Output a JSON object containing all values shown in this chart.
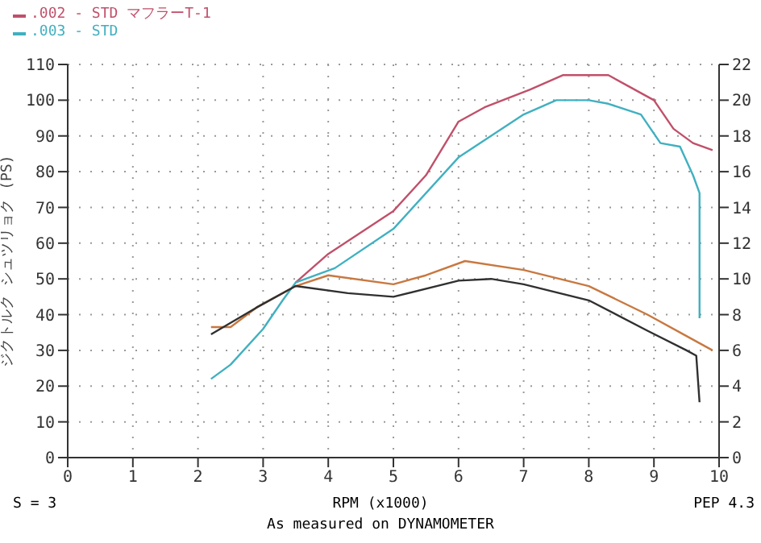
{
  "chart_data": {
    "type": "line",
    "xlabel": "RPM (x1000)",
    "ylabel": "ジクトルク シュツリョク (PS)",
    "annotations": [
      "S = 3",
      "PEP 4.3",
      "As measured on DYNAMOMETER"
    ],
    "xlim": [
      0,
      10
    ],
    "xticks": [
      0,
      1,
      2,
      3,
      4,
      5,
      6,
      7,
      8,
      9,
      10
    ],
    "ylim": [
      0,
      110
    ],
    "yticks": [
      0,
      10,
      20,
      30,
      40,
      50,
      60,
      70,
      80,
      90,
      100,
      110
    ],
    "y2lim": [
      0,
      22
    ],
    "y2ticks": [
      0,
      2,
      4,
      6,
      8,
      10,
      12,
      14,
      16,
      18,
      20,
      22
    ],
    "grid": true,
    "legend": "top left",
    "marker": "none",
    "line_style": "solid",
    "series": [
      {
        "name": ".002 - STD マフラーT-1",
        "color": "#c0506a",
        "x": [
          3.5,
          4.0,
          5.0,
          5.5,
          6.0,
          6.4,
          7.1,
          7.6,
          8.3,
          8.6,
          9.0,
          9.3,
          9.6,
          9.9
        ],
        "values": [
          49,
          57,
          69,
          79,
          94,
          98,
          103,
          107,
          107,
          104,
          100,
          92,
          88,
          86
        ]
      },
      {
        "name": ".003 - STD",
        "color": "#40b0c0",
        "x": [
          2.2,
          2.5,
          3.0,
          3.3,
          3.5,
          4.1,
          5.0,
          6.0,
          7.0,
          7.5,
          8.0,
          8.3,
          8.8,
          9.1,
          9.4,
          9.6,
          9.7,
          9.7
        ],
        "values": [
          22,
          26,
          36,
          44,
          49,
          53,
          64,
          84,
          96,
          100,
          100,
          99,
          96,
          88,
          87,
          79,
          74,
          39
        ]
      },
      {
        "color": "#c87840",
        "axis": "y2",
        "x": [
          2.2,
          2.5,
          2.9,
          3.5,
          4.0,
          5.0,
          5.5,
          6.1,
          7.0,
          8.0,
          8.9,
          9.5,
          9.9
        ],
        "values": [
          7.3,
          7.3,
          8.4,
          9.6,
          10.2,
          9.7,
          10.2,
          11.0,
          10.5,
          9.6,
          8.0,
          6.8,
          6.0
        ]
      },
      {
        "color": "#303030",
        "axis": "y2",
        "x": [
          2.2,
          2.9,
          3.5,
          4.3,
          5.0,
          6.0,
          6.5,
          7.0,
          8.0,
          8.9,
          9.5,
          9.65,
          9.7
        ],
        "values": [
          6.9,
          8.4,
          9.6,
          9.2,
          9.0,
          9.9,
          10.0,
          9.7,
          8.8,
          7.1,
          6.0,
          5.7,
          3.1
        ]
      }
    ]
  }
}
